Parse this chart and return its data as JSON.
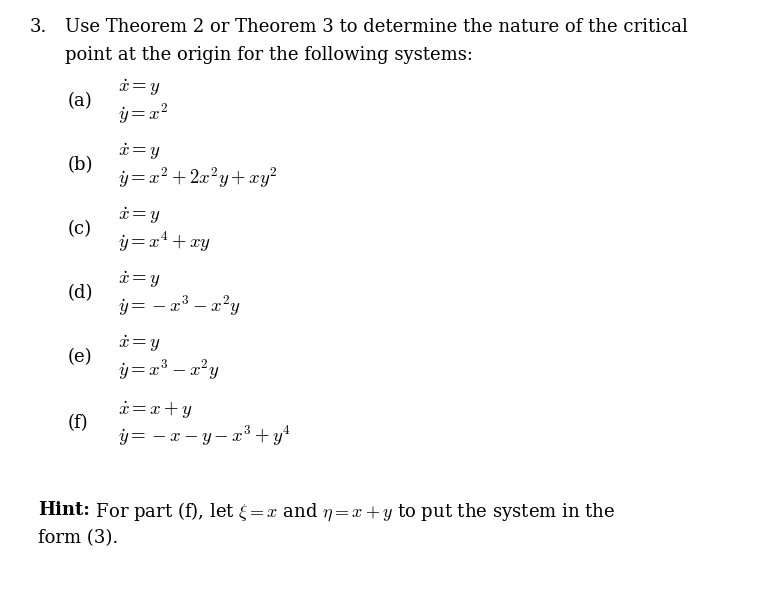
{
  "background_color": "#ffffff",
  "text_color": "#000000",
  "font_size": 13.0,
  "title_num": "3.",
  "title_line1": "Use Theorem 2 or Theorem 3 to determine the nature of the critical",
  "title_line2": "point at the origin for the following systems:",
  "parts": [
    {
      "label": "(a)",
      "eq1": "$\\dot{x} = y$",
      "eq2": "$\\dot{y} = x^2$"
    },
    {
      "label": "(b)",
      "eq1": "$\\dot{x} = y$",
      "eq2": "$\\dot{y} = x^2 + 2x^2y + xy^2$"
    },
    {
      "label": "(c)",
      "eq1": "$\\dot{x} = y$",
      "eq2": "$\\dot{y} = x^4 + xy$"
    },
    {
      "label": "(d)",
      "eq1": "$\\dot{x} = y$",
      "eq2": "$\\dot{y} = -x^3 - x^2y$"
    },
    {
      "label": "(e)",
      "eq1": "$\\dot{x} = y$",
      "eq2": "$\\dot{y} = x^3 - x^2y$"
    },
    {
      "label": "(f)",
      "eq1": "$\\dot{x} = x + y$",
      "eq2": "$\\dot{y} = -x - y - x^3 + y^4$"
    }
  ],
  "hint_bold_word": "Hint:",
  "hint_rest_line1": " For part (f), let $\\xi = x$ and $\\eta = x + y$ to put the system in the",
  "hint_rest_line2": "form (3)."
}
